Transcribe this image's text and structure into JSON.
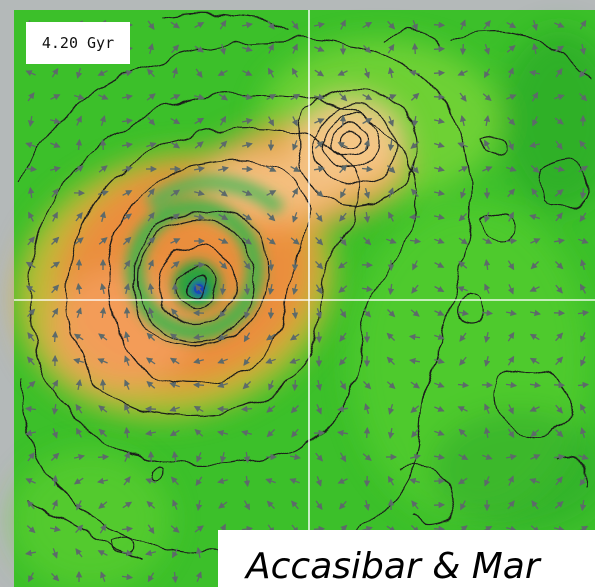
{
  "figure": {
    "time_label": "4.20 Gyr",
    "credit": "Accasibar & Mar",
    "colors": {
      "background_frame": "#b4b9b9",
      "field_low": "#20b020",
      "field_mid": "#6bd630",
      "field_high": "#f08a3e",
      "field_peak": "#f7cf9a",
      "core": "#1947b8",
      "contours": "#1a1a1a",
      "crosshair": "#ffffff"
    }
  }
}
